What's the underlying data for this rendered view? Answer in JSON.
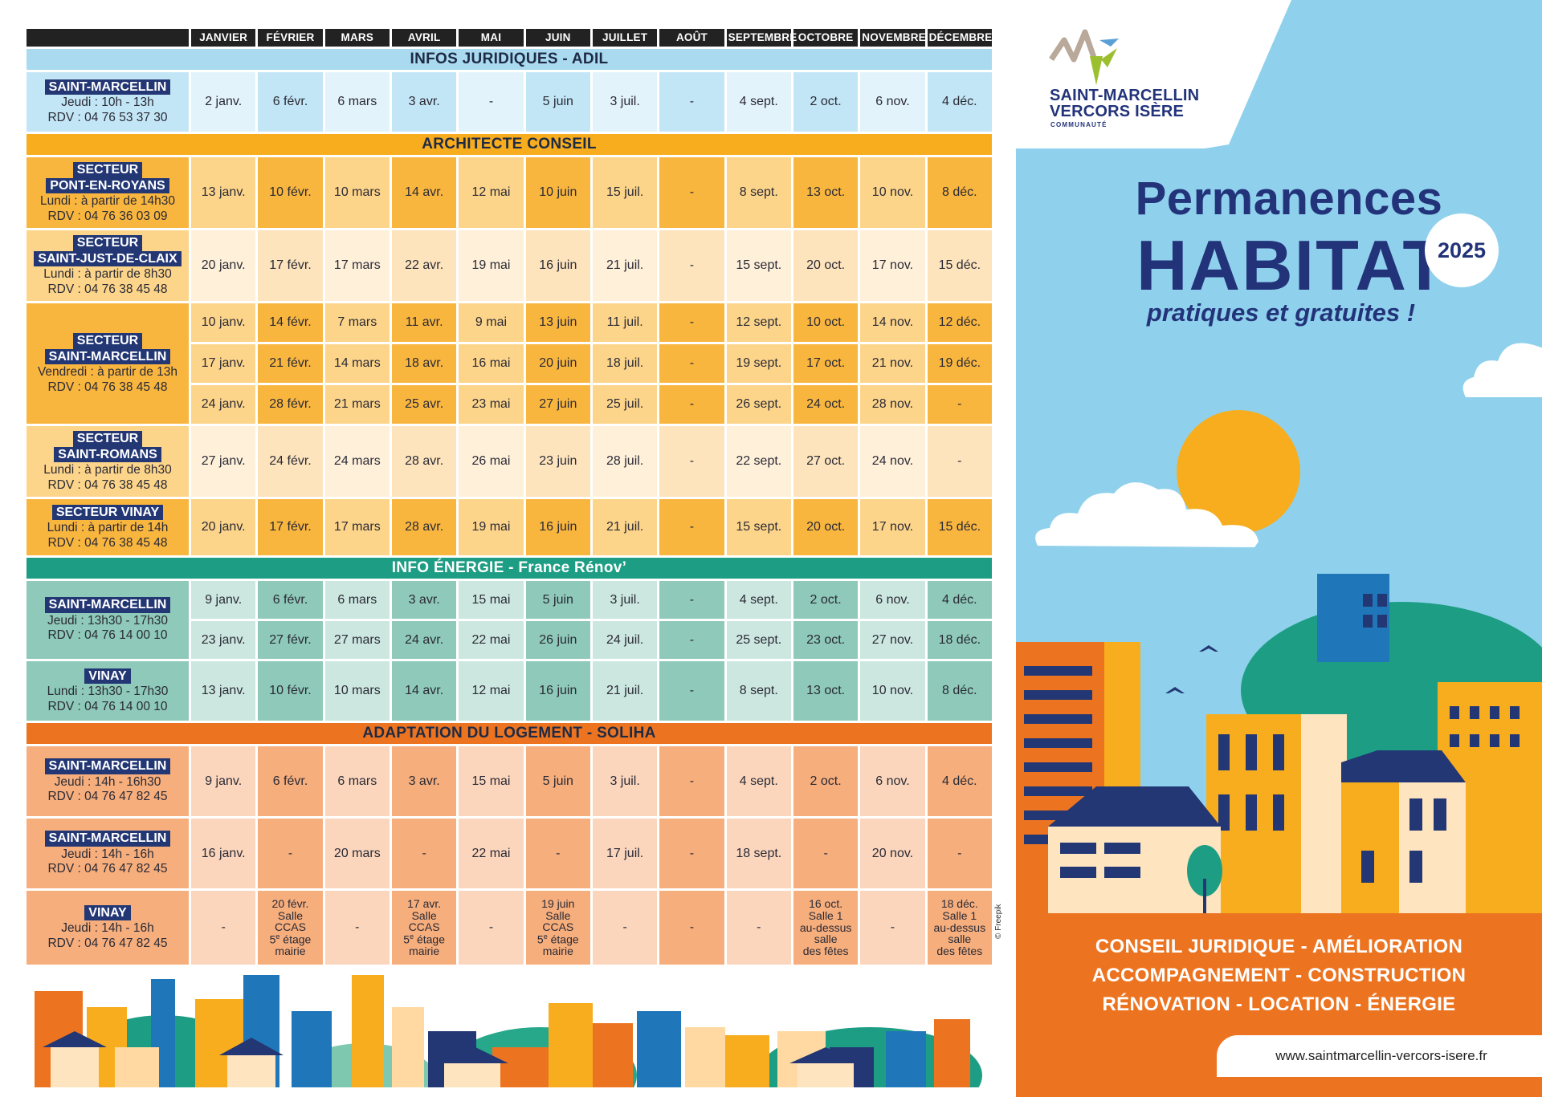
{
  "months": [
    "JANVIER",
    "FÉVRIER",
    "MARS",
    "AVRIL",
    "MAI",
    "JUIN",
    "JUILLET",
    "AOÛT",
    "SEPTEMBRE",
    "OCTOBRE",
    "NOVEMBRE",
    "DÉCEMBRE"
  ],
  "sections": [
    {
      "title": "INFOS JURIDIQUES - ADIL",
      "color": "#a9daf0",
      "colorA": "#e3f3fb",
      "colorB": "#c3e6f6",
      "labelColor": "#c3e6f6",
      "groups": [
        {
          "name": [
            "SAINT-MARCELLIN"
          ],
          "lines": [
            "Jeudi : 10h - 13h",
            "RDV : 04 76 53 37 30"
          ],
          "height": 74,
          "rows": [
            [
              "2 janv.",
              "6 févr.",
              "6 mars",
              "3 avr.",
              "-",
              "5 juin",
              "3 juil.",
              "-",
              "4 sept.",
              "2 oct.",
              "6 nov.",
              "4 déc."
            ]
          ]
        }
      ]
    },
    {
      "title": "ARCHITECTE CONSEIL",
      "color": "#f7ad1e",
      "colorA": "#fdd58a",
      "colorB": "#f9b63f",
      "labelColor": "#f9b63f",
      "groups": [
        {
          "name": [
            "SECTEUR",
            "PONT-EN-ROYANS"
          ],
          "lines": [
            "Lundi : à partir de 14h30",
            "RDV : 04 76 36 03 09"
          ],
          "height": 88,
          "rows": [
            [
              "13 janv.",
              "10 févr.",
              "10 mars",
              "14 avr.",
              "12 mai",
              "10 juin",
              "15 juil.",
              "-",
              "8 sept.",
              "13 oct.",
              "10 nov.",
              "8 déc."
            ]
          ]
        },
        {
          "name": [
            "SECTEUR",
            "SAINT-JUST-DE-CLAIX"
          ],
          "lines": [
            "Lundi : à partir de 8h30",
            "RDV : 04 76 38 45 48"
          ],
          "height": 88,
          "light": true,
          "rows": [
            [
              "20 janv.",
              "17 févr.",
              "17 mars",
              "22 avr.",
              "19 mai",
              "16 juin",
              "21 juil.",
              "-",
              "15 sept.",
              "20 oct.",
              "17 nov.",
              "15 déc."
            ]
          ]
        },
        {
          "name": [
            "SECTEUR",
            "SAINT-MARCELLIN"
          ],
          "lines": [
            "Vendredi : à partir de 13h",
            "RDV : 04 76 38 45 48"
          ],
          "height": 48,
          "rows": [
            [
              "10 janv.",
              "14 févr.",
              "7 mars",
              "11 avr.",
              "9 mai",
              "13 juin",
              "11 juil.",
              "-",
              "12 sept.",
              "10 oct.",
              "14 nov.",
              "12 déc."
            ],
            [
              "17 janv.",
              "21 févr.",
              "14 mars",
              "18 avr.",
              "16 mai",
              "20 juin",
              "18 juil.",
              "-",
              "19 sept.",
              "17 oct.",
              "21 nov.",
              "19 déc."
            ],
            [
              "24 janv.",
              "28 févr.",
              "21 mars",
              "25 avr.",
              "23 mai",
              "27 juin",
              "25 juil.",
              "-",
              "26 sept.",
              "24 oct.",
              "28 nov.",
              "-"
            ]
          ]
        },
        {
          "name": [
            "SECTEUR",
            "SAINT-ROMANS"
          ],
          "lines": [
            "Lundi : à partir de 8h30",
            "RDV : 04 76 38 45 48"
          ],
          "height": 88,
          "light": true,
          "rows": [
            [
              "27 janv.",
              "24 févr.",
              "24 mars",
              "28 avr.",
              "26 mai",
              "23 juin",
              "28 juil.",
              "-",
              "22 sept.",
              "27 oct.",
              "24 nov.",
              "-"
            ]
          ]
        },
        {
          "name": [
            "SECTEUR VINAY"
          ],
          "lines": [
            "Lundi : à partir de 14h",
            "RDV : 04 76 38 45 48"
          ],
          "height": 70,
          "rows": [
            [
              "20 janv.",
              "17 févr.",
              "17 mars",
              "28 avr.",
              "19 mai",
              "16 juin",
              "21 juil.",
              "-",
              "15 sept.",
              "20 oct.",
              "17 nov.",
              "15 déc."
            ]
          ]
        }
      ]
    },
    {
      "title": "INFO ÉNERGIE - France Rénov’",
      "color": "#1d9e84",
      "colorA": "#cce7e0",
      "colorB": "#8ec9b9",
      "labelColor": "#8ec9b9",
      "groups": [
        {
          "name": [
            "SAINT-MARCELLIN"
          ],
          "lines": [
            "Jeudi : 13h30 - 17h30",
            "RDV : 04 76 14 00 10"
          ],
          "height": 47,
          "rows": [
            [
              "9 janv.",
              "6 févr.",
              "6 mars",
              "3 avr.",
              "15 mai",
              "5 juin",
              "3 juil.",
              "-",
              "4 sept.",
              "2 oct.",
              "6 nov.",
              "4 déc."
            ],
            [
              "23 janv.",
              "27 févr.",
              "27 mars",
              "24 avr.",
              "22 mai",
              "26 juin",
              "24 juil.",
              "-",
              "25 sept.",
              "23 oct.",
              "27 nov.",
              "18 déc."
            ]
          ]
        },
        {
          "name": [
            "VINAY"
          ],
          "lines": [
            "Lundi : 13h30 - 17h30",
            "RDV : 04 76 14 00 10"
          ],
          "height": 74,
          "rows": [
            [
              "13 janv.",
              "10 févr.",
              "10 mars",
              "14 avr.",
              "12 mai",
              "16 juin",
              "21 juil.",
              "-",
              "8 sept.",
              "13 oct.",
              "10 nov.",
              "8 déc."
            ]
          ]
        }
      ]
    },
    {
      "title": "ADAPTATION DU LOGEMENT - SOLIHA",
      "color": "#ec7421",
      "colorA": "#fbd6bd",
      "colorB": "#f6ae7d",
      "labelColor": "#f6ae7d",
      "groups": [
        {
          "name": [
            "SAINT-MARCELLIN"
          ],
          "lines": [
            "Jeudi : 14h - 16h30",
            "RDV : 04 76 47 82 45"
          ],
          "height": 87,
          "rows": [
            [
              "9 janv.",
              "6 févr.",
              "6 mars",
              "3 avr.",
              "15 mai",
              "5 juin",
              "3 juil.",
              "-",
              "4 sept.",
              "2 oct.",
              "6 nov.",
              "4 déc."
            ]
          ]
        },
        {
          "name": [
            "SAINT-MARCELLIN"
          ],
          "lines": [
            "Jeudi : 14h - 16h",
            "RDV : 04 76 47 82 45"
          ],
          "height": 87,
          "rows": [
            [
              "16  janv.",
              "-",
              "20 mars",
              "-",
              "22 mai",
              "-",
              "17 juil.",
              "-",
              "18 sept.",
              "-",
              "20 nov.",
              "-"
            ]
          ]
        },
        {
          "name": [
            "VINAY"
          ],
          "lines": [
            "Jeudi : 14h - 16h",
            "RDV : 04 76 47 82 45"
          ],
          "height": 92,
          "notes": true,
          "rows": [
            [
              "-",
              "20 févr.|Salle|CCAS|5e étage|mairie",
              "-",
              "17 avr.|Salle|CCAS|5e étage|mairie",
              "-",
              "19 juin|Salle|CCAS|5e étage|mairie",
              "-",
              "-",
              "-",
              "16 oct.|Salle 1|au-dessus|salle|des fêtes",
              "-",
              "18 déc.|Salle 1|au-dessus|salle|des fêtes"
            ]
          ]
        }
      ]
    }
  ],
  "poster": {
    "logo_line1": "SAINT-MARCELLIN",
    "logo_line2": "VERCORS ISÈRE",
    "logo_line3": "COMMUNAUTÉ",
    "title1": "Permanences",
    "title2": "HABITAT",
    "year": "2025",
    "subtitle": "pratiques et gratuites !",
    "tag1": "CONSEIL JURIDIQUE  -  AMÉLIORATION",
    "tag2": "ACCOMPAGNEMENT - CONSTRUCTION",
    "tag3": "RÉNOVATION  -  LOCATION  -  ÉNERGIE",
    "url": "www.saintmarcellin-vercors-isere.fr",
    "credit": "© Freepik"
  },
  "colors": {
    "navy": "#23337a",
    "sky": "#8fd1ec",
    "orange": "#ec7421",
    "yellow": "#f7ad1e",
    "teal": "#1d9e84"
  },
  "icons": [
    "logo-mark-icon",
    "sun-icon",
    "cloud-icon",
    "bird-icon",
    "city-skyline-icon",
    "buildings-illustration-icon"
  ]
}
